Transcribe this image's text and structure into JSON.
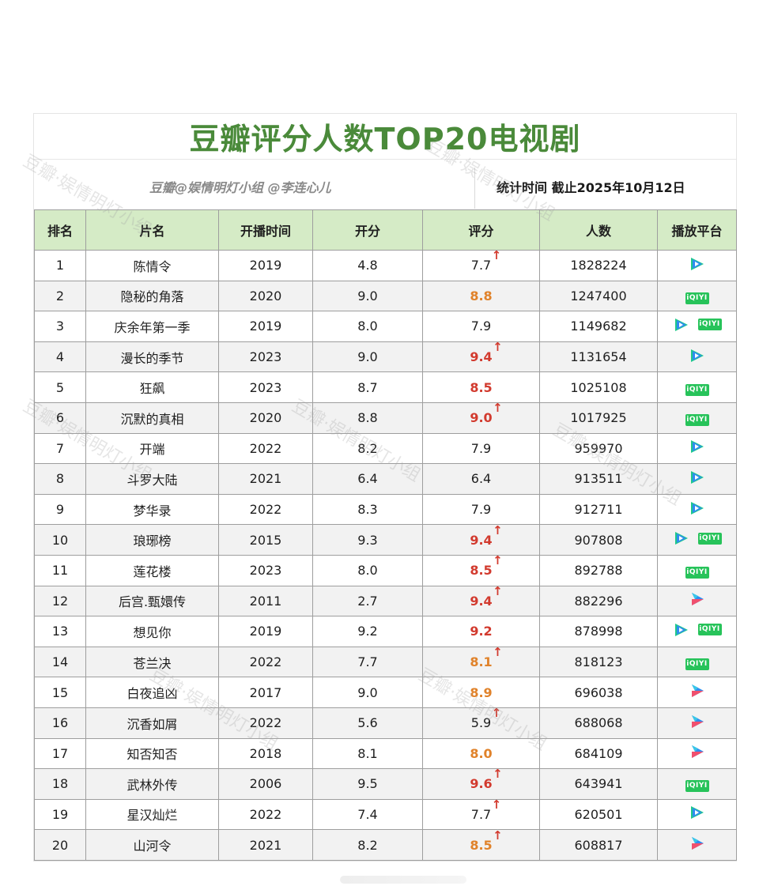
{
  "header": {
    "title": "豆瓣评分人数TOP20电视剧",
    "source": "豆瓣@娱情明灯小组 @李连心儿",
    "stat_time": "统计时间  截止2025年10月12日"
  },
  "watermark_text": "豆瓣·娱情明灯小组",
  "columns": [
    "排名",
    "片名",
    "开播时间",
    "开分",
    "评分",
    "人数",
    "播放平台"
  ],
  "colors": {
    "title_green": "#4a8a3a",
    "header_bg": "#d5ebc6",
    "orange": "#e0822a",
    "red": "#d23a2e",
    "iqiyi_green": "#27c35a",
    "tencent_teal": "#1ec98a",
    "youku_blue": "#2f8cf0"
  },
  "rows": [
    {
      "rank": "1",
      "name": "陈情令",
      "year": "2019",
      "open": "4.8",
      "score": "7.7",
      "color": "",
      "arrow": true,
      "count": "1828224",
      "platforms": [
        "tencent-icon"
      ]
    },
    {
      "rank": "2",
      "name": "隐秘的角落",
      "year": "2020",
      "open": "9.0",
      "score": "8.8",
      "color": "orange",
      "arrow": false,
      "count": "1247400",
      "platforms": [
        "iqiyi-icon"
      ]
    },
    {
      "rank": "3",
      "name": "庆余年第一季",
      "year": "2019",
      "open": "8.0",
      "score": "7.9",
      "color": "",
      "arrow": false,
      "count": "1149682",
      "platforms": [
        "tencent-icon",
        "iqiyi-icon"
      ]
    },
    {
      "rank": "4",
      "name": "漫长的季节",
      "year": "2023",
      "open": "9.0",
      "score": "9.4",
      "color": "red",
      "arrow": true,
      "count": "1131654",
      "platforms": [
        "tencent-icon"
      ]
    },
    {
      "rank": "5",
      "name": "狂飙",
      "year": "2023",
      "open": "8.7",
      "score": "8.5",
      "color": "red",
      "arrow": false,
      "count": "1025108",
      "platforms": [
        "iqiyi-icon"
      ]
    },
    {
      "rank": "6",
      "name": "沉默的真相",
      "year": "2020",
      "open": "8.8",
      "score": "9.0",
      "color": "red",
      "arrow": true,
      "count": "1017925",
      "platforms": [
        "iqiyi-icon"
      ]
    },
    {
      "rank": "7",
      "name": "开端",
      "year": "2022",
      "open": "8.2",
      "score": "7.9",
      "color": "",
      "arrow": false,
      "count": "959970",
      "platforms": [
        "tencent-icon"
      ]
    },
    {
      "rank": "8",
      "name": "斗罗大陆",
      "year": "2021",
      "open": "6.4",
      "score": "6.4",
      "color": "",
      "arrow": false,
      "count": "913511",
      "platforms": [
        "tencent-icon"
      ]
    },
    {
      "rank": "9",
      "name": "梦华录",
      "year": "2022",
      "open": "8.3",
      "score": "7.9",
      "color": "",
      "arrow": false,
      "count": "912711",
      "platforms": [
        "tencent-icon"
      ]
    },
    {
      "rank": "10",
      "name": "琅琊榜",
      "year": "2015",
      "open": "9.3",
      "score": "9.4",
      "color": "red",
      "arrow": true,
      "count": "907808",
      "platforms": [
        "tencent-icon",
        "iqiyi-icon"
      ]
    },
    {
      "rank": "11",
      "name": "莲花楼",
      "year": "2023",
      "open": "8.0",
      "score": "8.5",
      "color": "red",
      "arrow": true,
      "count": "892788",
      "platforms": [
        "iqiyi-icon"
      ]
    },
    {
      "rank": "12",
      "name": "后宫.甄嬛传",
      "year": "2011",
      "open": "2.7",
      "score": "9.4",
      "color": "red",
      "arrow": true,
      "count": "882296",
      "platforms": [
        "youku-icon"
      ]
    },
    {
      "rank": "13",
      "name": "想见你",
      "year": "2019",
      "open": "9.2",
      "score": "9.2",
      "color": "red",
      "arrow": false,
      "count": "878998",
      "platforms": [
        "tencent-icon",
        "iqiyi-icon"
      ]
    },
    {
      "rank": "14",
      "name": "苍兰决",
      "year": "2022",
      "open": "7.7",
      "score": "8.1",
      "color": "orange",
      "arrow": true,
      "count": "818123",
      "platforms": [
        "iqiyi-icon"
      ]
    },
    {
      "rank": "15",
      "name": "白夜追凶",
      "year": "2017",
      "open": "9.0",
      "score": "8.9",
      "color": "orange",
      "arrow": false,
      "count": "696038",
      "platforms": [
        "youku-icon"
      ]
    },
    {
      "rank": "16",
      "name": "沉香如屑",
      "year": "2022",
      "open": "5.6",
      "score": "5.9",
      "color": "",
      "arrow": true,
      "count": "688068",
      "platforms": [
        "youku-icon"
      ]
    },
    {
      "rank": "17",
      "name": "知否知否",
      "year": "2018",
      "open": "8.1",
      "score": "8.0",
      "color": "orange",
      "arrow": false,
      "count": "684109",
      "platforms": [
        "youku-icon"
      ]
    },
    {
      "rank": "18",
      "name": "武林外传",
      "year": "2006",
      "open": "9.5",
      "score": "9.6",
      "color": "red",
      "arrow": true,
      "count": "643941",
      "platforms": [
        "iqiyi-icon"
      ]
    },
    {
      "rank": "19",
      "name": "星汉灿烂",
      "year": "2022",
      "open": "7.4",
      "score": "7.7",
      "color": "",
      "arrow": true,
      "count": "620501",
      "platforms": [
        "tencent-icon"
      ]
    },
    {
      "rank": "20",
      "name": "山河令",
      "year": "2021",
      "open": "8.2",
      "score": "8.5",
      "color": "orange",
      "arrow": true,
      "count": "608817",
      "platforms": [
        "youku-icon"
      ]
    }
  ],
  "icons": {
    "arrow": "↑",
    "iqiyi_text": "iQIYI"
  }
}
